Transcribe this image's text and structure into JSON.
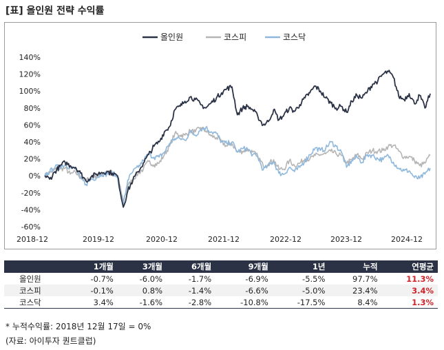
{
  "title": "[표] 올인원 전략 수익률",
  "chart_data": {
    "type": "line",
    "title": "",
    "xlabel": "",
    "ylabel": "",
    "ylim": [
      -60,
      140
    ],
    "yticks": [
      -60,
      -40,
      -20,
      0,
      20,
      40,
      60,
      80,
      100,
      120,
      140
    ],
    "ytick_labels": [
      "-60%",
      "-40%",
      "-20%",
      "0%",
      "20%",
      "40%",
      "60%",
      "80%",
      "100%",
      "120%",
      "140%"
    ],
    "xticks": [
      "2018-12",
      "2019-12",
      "2020-12",
      "2021-12",
      "2022-12",
      "2023-12",
      "2024-12"
    ],
    "legend_position": "top-center",
    "grid": false,
    "series": [
      {
        "name": "올인원",
        "color": "#2b3245",
        "points": [
          [
            "2018-12-17",
            0
          ],
          [
            "2019-01-15",
            -4
          ],
          [
            "2019-02-15",
            5
          ],
          [
            "2019-03-15",
            11
          ],
          [
            "2019-04-15",
            16
          ],
          [
            "2019-05-15",
            12
          ],
          [
            "2019-06-15",
            10
          ],
          [
            "2019-07-15",
            3
          ],
          [
            "2019-08-15",
            -6
          ],
          [
            "2019-09-15",
            -1
          ],
          [
            "2019-10-15",
            2
          ],
          [
            "2019-11-15",
            4
          ],
          [
            "2019-12-15",
            5
          ],
          [
            "2020-01-15",
            3
          ],
          [
            "2020-02-15",
            0
          ],
          [
            "2020-03-20",
            -37
          ],
          [
            "2020-04-15",
            -18
          ],
          [
            "2020-05-15",
            -5
          ],
          [
            "2020-06-15",
            5
          ],
          [
            "2020-07-15",
            15
          ],
          [
            "2020-08-15",
            25
          ],
          [
            "2020-09-15",
            35
          ],
          [
            "2020-10-15",
            40
          ],
          [
            "2020-11-15",
            52
          ],
          [
            "2020-12-15",
            58
          ],
          [
            "2021-01-15",
            78
          ],
          [
            "2021-02-15",
            82
          ],
          [
            "2021-03-15",
            88
          ],
          [
            "2021-04-15",
            93
          ],
          [
            "2021-05-15",
            90
          ],
          [
            "2021-06-15",
            84
          ],
          [
            "2021-07-15",
            80
          ],
          [
            "2021-08-15",
            86
          ],
          [
            "2021-09-15",
            92
          ],
          [
            "2021-10-15",
            98
          ],
          [
            "2021-11-15",
            103
          ],
          [
            "2021-12-15",
            105
          ],
          [
            "2022-01-15",
            72
          ],
          [
            "2022-02-15",
            80
          ],
          [
            "2022-03-15",
            82
          ],
          [
            "2022-04-15",
            78
          ],
          [
            "2022-05-15",
            70
          ],
          [
            "2022-06-15",
            60
          ],
          [
            "2022-07-15",
            64
          ],
          [
            "2022-08-15",
            78
          ],
          [
            "2022-09-15",
            66
          ],
          [
            "2022-10-15",
            72
          ],
          [
            "2022-11-15",
            80
          ],
          [
            "2022-12-15",
            76
          ],
          [
            "2023-01-15",
            84
          ],
          [
            "2023-02-15",
            92
          ],
          [
            "2023-03-15",
            98
          ],
          [
            "2023-04-15",
            106
          ],
          [
            "2023-05-15",
            100
          ],
          [
            "2023-06-15",
            92
          ],
          [
            "2023-07-15",
            86
          ],
          [
            "2023-08-15",
            80
          ],
          [
            "2023-09-15",
            82
          ],
          [
            "2023-10-15",
            75
          ],
          [
            "2023-11-15",
            88
          ],
          [
            "2023-12-15",
            95
          ],
          [
            "2024-01-15",
            92
          ],
          [
            "2024-02-15",
            100
          ],
          [
            "2024-03-15",
            108
          ],
          [
            "2024-04-15",
            112
          ],
          [
            "2024-05-15",
            120
          ],
          [
            "2024-06-15",
            123
          ],
          [
            "2024-07-15",
            116
          ],
          [
            "2024-08-15",
            94
          ],
          [
            "2024-09-15",
            90
          ],
          [
            "2024-10-15",
            97
          ],
          [
            "2024-11-15",
            85
          ],
          [
            "2024-12-15",
            95
          ],
          [
            "2025-01-15",
            80
          ],
          [
            "2025-02-15",
            97
          ]
        ]
      },
      {
        "name": "코스피",
        "color": "#b5b5b5",
        "points": [
          [
            "2018-12-17",
            0
          ],
          [
            "2019-01-15",
            4
          ],
          [
            "2019-02-15",
            8
          ],
          [
            "2019-03-15",
            8
          ],
          [
            "2019-04-15",
            9
          ],
          [
            "2019-05-15",
            2
          ],
          [
            "2019-06-15",
            4
          ],
          [
            "2019-07-15",
            -2
          ],
          [
            "2019-08-15",
            -6
          ],
          [
            "2019-09-15",
            -1
          ],
          [
            "2019-10-15",
            0
          ],
          [
            "2019-11-15",
            2
          ],
          [
            "2019-12-15",
            6
          ],
          [
            "2020-01-15",
            4
          ],
          [
            "2020-02-15",
            -1
          ],
          [
            "2020-03-20",
            -30
          ],
          [
            "2020-04-15",
            -12
          ],
          [
            "2020-05-15",
            -4
          ],
          [
            "2020-06-15",
            3
          ],
          [
            "2020-07-15",
            8
          ],
          [
            "2020-08-15",
            17
          ],
          [
            "2020-09-15",
            13
          ],
          [
            "2020-10-15",
            15
          ],
          [
            "2020-11-15",
            25
          ],
          [
            "2020-12-15",
            35
          ],
          [
            "2021-01-15",
            50
          ],
          [
            "2021-02-15",
            48
          ],
          [
            "2021-03-15",
            48
          ],
          [
            "2021-04-15",
            53
          ],
          [
            "2021-05-15",
            52
          ],
          [
            "2021-06-15",
            57
          ],
          [
            "2021-07-15",
            53
          ],
          [
            "2021-08-15",
            47
          ],
          [
            "2021-09-15",
            45
          ],
          [
            "2021-10-15",
            40
          ],
          [
            "2021-11-15",
            35
          ],
          [
            "2021-12-15",
            38
          ],
          [
            "2022-01-15",
            28
          ],
          [
            "2022-02-15",
            29
          ],
          [
            "2022-03-15",
            31
          ],
          [
            "2022-04-15",
            28
          ],
          [
            "2022-05-15",
            23
          ],
          [
            "2022-06-15",
            12
          ],
          [
            "2022-07-15",
            14
          ],
          [
            "2022-08-15",
            19
          ],
          [
            "2022-09-15",
            8
          ],
          [
            "2022-10-15",
            8
          ],
          [
            "2022-11-15",
            18
          ],
          [
            "2022-12-15",
            12
          ],
          [
            "2023-01-15",
            15
          ],
          [
            "2023-02-15",
            20
          ],
          [
            "2023-03-15",
            20
          ],
          [
            "2023-04-15",
            24
          ],
          [
            "2023-05-15",
            25
          ],
          [
            "2023-06-15",
            26
          ],
          [
            "2023-07-15",
            29
          ],
          [
            "2023-08-15",
            26
          ],
          [
            "2023-09-15",
            24
          ],
          [
            "2023-10-15",
            15
          ],
          [
            "2023-11-15",
            19
          ],
          [
            "2023-12-15",
            25
          ],
          [
            "2024-01-15",
            20
          ],
          [
            "2024-02-15",
            27
          ],
          [
            "2024-03-15",
            30
          ],
          [
            "2024-04-15",
            29
          ],
          [
            "2024-05-15",
            30
          ],
          [
            "2024-06-15",
            35
          ],
          [
            "2024-07-15",
            36
          ],
          [
            "2024-08-15",
            29
          ],
          [
            "2024-09-15",
            22
          ],
          [
            "2024-10-15",
            23
          ],
          [
            "2024-11-15",
            18
          ],
          [
            "2024-12-15",
            12
          ],
          [
            "2025-01-15",
            15
          ],
          [
            "2025-02-15",
            24
          ]
        ]
      },
      {
        "name": "코스닥",
        "color": "#8fb8dc",
        "points": [
          [
            "2018-12-17",
            0
          ],
          [
            "2019-01-15",
            5
          ],
          [
            "2019-02-15",
            10
          ],
          [
            "2019-03-15",
            11
          ],
          [
            "2019-04-15",
            13
          ],
          [
            "2019-05-15",
            10
          ],
          [
            "2019-06-15",
            8
          ],
          [
            "2019-07-15",
            -3
          ],
          [
            "2019-08-15",
            -10
          ],
          [
            "2019-09-15",
            -4
          ],
          [
            "2019-10-15",
            -2
          ],
          [
            "2019-11-15",
            2
          ],
          [
            "2019-12-15",
            2
          ],
          [
            "2020-01-15",
            4
          ],
          [
            "2020-02-15",
            -2
          ],
          [
            "2020-03-20",
            -35
          ],
          [
            "2020-04-15",
            -5
          ],
          [
            "2020-05-15",
            5
          ],
          [
            "2020-06-15",
            10
          ],
          [
            "2020-07-15",
            18
          ],
          [
            "2020-08-15",
            26
          ],
          [
            "2020-09-15",
            22
          ],
          [
            "2020-10-15",
            22
          ],
          [
            "2020-11-15",
            28
          ],
          [
            "2020-12-15",
            38
          ],
          [
            "2021-01-15",
            44
          ],
          [
            "2021-02-15",
            44
          ],
          [
            "2021-03-15",
            42
          ],
          [
            "2021-04-15",
            52
          ],
          [
            "2021-05-15",
            48
          ],
          [
            "2021-06-15",
            55
          ],
          [
            "2021-07-15",
            57
          ],
          [
            "2021-08-15",
            52
          ],
          [
            "2021-09-15",
            50
          ],
          [
            "2021-10-15",
            40
          ],
          [
            "2021-11-15",
            38
          ],
          [
            "2021-12-15",
            40
          ],
          [
            "2022-01-15",
            28
          ],
          [
            "2022-02-15",
            32
          ],
          [
            "2022-03-15",
            32
          ],
          [
            "2022-04-15",
            25
          ],
          [
            "2022-05-15",
            22
          ],
          [
            "2022-06-15",
            7
          ],
          [
            "2022-07-15",
            12
          ],
          [
            "2022-08-15",
            17
          ],
          [
            "2022-09-15",
            3
          ],
          [
            "2022-10-15",
            2
          ],
          [
            "2022-11-15",
            10
          ],
          [
            "2022-12-15",
            5
          ],
          [
            "2023-01-15",
            10
          ],
          [
            "2023-02-15",
            18
          ],
          [
            "2023-03-15",
            25
          ],
          [
            "2023-04-15",
            33
          ],
          [
            "2023-05-15",
            30
          ],
          [
            "2023-06-15",
            32
          ],
          [
            "2023-07-15",
            40
          ],
          [
            "2023-08-15",
            35
          ],
          [
            "2023-09-15",
            28
          ],
          [
            "2023-10-15",
            10
          ],
          [
            "2023-11-15",
            18
          ],
          [
            "2023-12-15",
            22
          ],
          [
            "2024-01-15",
            16
          ],
          [
            "2024-02-15",
            25
          ],
          [
            "2024-03-15",
            24
          ],
          [
            "2024-04-15",
            20
          ],
          [
            "2024-05-15",
            19
          ],
          [
            "2024-06-15",
            24
          ],
          [
            "2024-07-15",
            16
          ],
          [
            "2024-08-15",
            9
          ],
          [
            "2024-09-15",
            6
          ],
          [
            "2024-10-15",
            6
          ],
          [
            "2024-11-15",
            -2
          ],
          [
            "2024-12-15",
            -3
          ],
          [
            "2025-01-15",
            2
          ],
          [
            "2025-02-15",
            9
          ]
        ]
      }
    ]
  },
  "table": {
    "headers": [
      "",
      "1개월",
      "3개월",
      "6개월",
      "9개월",
      "1년",
      "누적",
      "연평균"
    ],
    "rows": [
      [
        "올인원",
        "-0.7%",
        "-6.0%",
        "-1.7%",
        "-6.9%",
        "-5.5%",
        "97.7%",
        "11.3%"
      ],
      [
        "코스피",
        "-0.1%",
        "0.8%",
        "-1.4%",
        "-6.6%",
        "-5.0%",
        "23.4%",
        "3.4%"
      ],
      [
        "코스닥",
        "3.4%",
        "-1.6%",
        "-2.8%",
        "-10.8%",
        "-17.5%",
        "8.4%",
        "1.3%"
      ]
    ]
  },
  "footnote": "* 누적수익률: 2018년 12월 17일 = 0%",
  "source": "(자료: 아이투자 퀀트클럽)",
  "colors": {
    "header_bg": "#2b3245",
    "highlight": "#d2232a"
  }
}
